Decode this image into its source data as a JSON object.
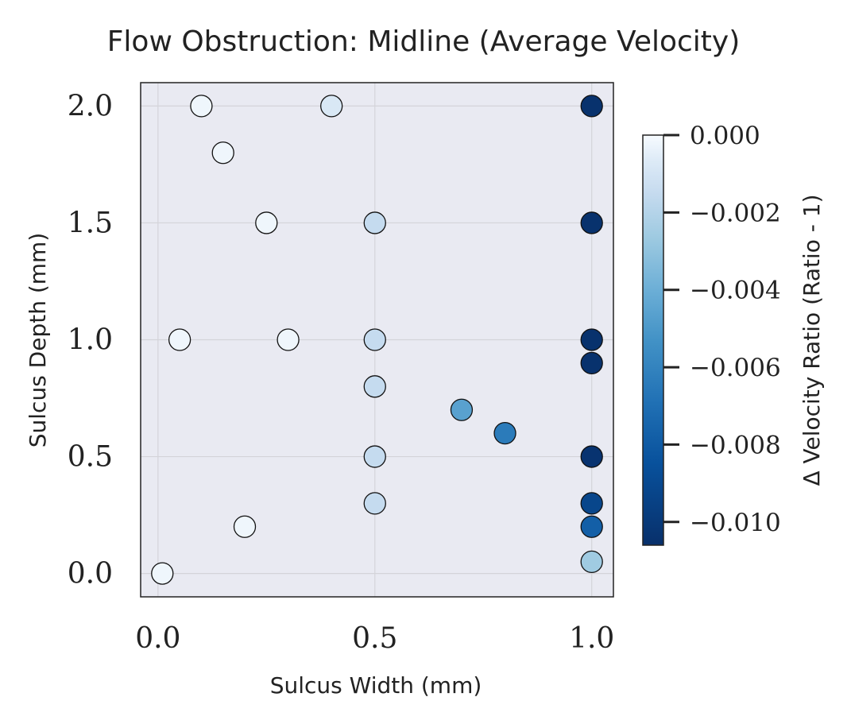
{
  "chart_data": {
    "type": "scatter",
    "title": "Flow Obstruction: Midline (Average Velocity)",
    "xlabel": "Sulcus Width (mm)",
    "ylabel": "Sulcus Depth (mm)",
    "xlim": [
      -0.04,
      1.05
    ],
    "ylim": [
      -0.1,
      2.1
    ],
    "xticks": [
      0.0,
      0.5,
      1.0
    ],
    "xtick_labels": [
      "0.0",
      "0.5",
      "1.0"
    ],
    "yticks": [
      0.0,
      0.5,
      1.0,
      1.5,
      2.0
    ],
    "ytick_labels": [
      "0.0",
      "0.5",
      "1.0",
      "1.5",
      "2.0"
    ],
    "grid": true,
    "colorbar": {
      "label": "Δ Velocity Ratio (Ratio - 1)",
      "colormap": "Blues_r",
      "range": [
        -0.0106,
        0.0
      ],
      "ticks": [
        0.0,
        -0.002,
        -0.004,
        -0.006,
        -0.008,
        -0.01
      ],
      "tick_labels": [
        "0.000",
        "−0.002",
        "−0.004",
        "−0.006",
        "−0.008",
        "−0.010"
      ]
    },
    "points": [
      {
        "x": 0.01,
        "y": 0.0,
        "value": -0.0002
      },
      {
        "x": 0.05,
        "y": 1.0,
        "value": -0.0002
      },
      {
        "x": 0.1,
        "y": 2.0,
        "value": -0.0002
      },
      {
        "x": 0.15,
        "y": 1.8,
        "value": -0.0002
      },
      {
        "x": 0.2,
        "y": 0.2,
        "value": -0.0002
      },
      {
        "x": 0.25,
        "y": 1.5,
        "value": -0.0002
      },
      {
        "x": 0.3,
        "y": 1.0,
        "value": -0.0002
      },
      {
        "x": 0.4,
        "y": 2.0,
        "value": -0.0008
      },
      {
        "x": 0.5,
        "y": 1.5,
        "value": -0.0015
      },
      {
        "x": 0.5,
        "y": 1.0,
        "value": -0.0015
      },
      {
        "x": 0.5,
        "y": 0.8,
        "value": -0.0015
      },
      {
        "x": 0.5,
        "y": 0.5,
        "value": -0.0015
      },
      {
        "x": 0.5,
        "y": 0.3,
        "value": -0.0015
      },
      {
        "x": 0.7,
        "y": 0.7,
        "value": -0.0046
      },
      {
        "x": 0.8,
        "y": 0.6,
        "value": -0.0064
      },
      {
        "x": 1.0,
        "y": 2.0,
        "value": -0.0105
      },
      {
        "x": 1.0,
        "y": 1.5,
        "value": -0.0105
      },
      {
        "x": 1.0,
        "y": 1.0,
        "value": -0.0105
      },
      {
        "x": 1.0,
        "y": 0.9,
        "value": -0.0105
      },
      {
        "x": 1.0,
        "y": 0.5,
        "value": -0.0104
      },
      {
        "x": 1.0,
        "y": 0.3,
        "value": -0.0092
      },
      {
        "x": 1.0,
        "y": 0.2,
        "value": -0.0078
      },
      {
        "x": 1.0,
        "y": 0.05,
        "value": -0.0026
      }
    ]
  }
}
